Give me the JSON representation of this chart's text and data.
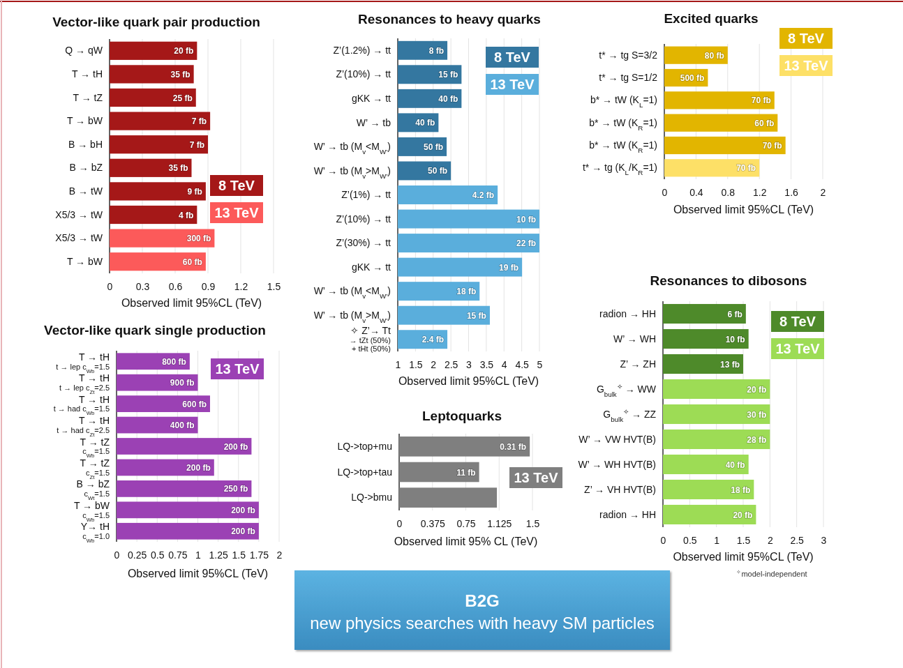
{
  "chart_data": [
    {
      "type": "bar",
      "orientation": "horizontal",
      "title": "Vector-like quark pair production",
      "xlabel": "Observed limit 95%CL (TeV)",
      "categories": [
        "Q → qW",
        "T → tH",
        "T → tZ",
        "T → bW",
        "B → bH",
        "B → bZ",
        "B → tW",
        "X5/3 → tW",
        "X5/3 → tW",
        "T → bW"
      ],
      "series": [
        {
          "name": "8 TeV",
          "color": "#a51818",
          "values": [
            0.8,
            0.77,
            0.79,
            0.92,
            0.9,
            0.75,
            0.88,
            0.8,
            null,
            null
          ]
        },
        {
          "name": "13 TeV",
          "color": "#fc5a5a",
          "values": [
            null,
            null,
            null,
            null,
            null,
            null,
            null,
            null,
            0.96,
            0.88
          ]
        }
      ],
      "xlim": [
        0,
        1.5
      ],
      "xticks": [
        0,
        0.3,
        0.6,
        0.9,
        1.2,
        1.5
      ],
      "grid": "x",
      "legend": "bottom right",
      "annotations": [
        {
          "text": "20 fb",
          "x": 0.8,
          "y": "Q → qW"
        },
        {
          "text": "35 fb",
          "x": 0.77,
          "y": "T → tH"
        },
        {
          "text": "25 fb",
          "x": 0.79,
          "y": "T → tZ"
        },
        {
          "text": "7 fb",
          "x": 0.92,
          "y": "T → bW"
        },
        {
          "text": "7 fb",
          "x": 0.9,
          "y": "B → bH"
        },
        {
          "text": "35 fb",
          "x": 0.75,
          "y": "B → bZ"
        },
        {
          "text": "9 fb",
          "x": 0.88,
          "y": "B → tW"
        },
        {
          "text": "4 fb",
          "x": 0.8,
          "y": "X5/3 → tW"
        },
        "300 fb",
        "60 fb"
      ]
    },
    {
      "type": "bar",
      "orientation": "horizontal",
      "title": "Resonances to heavy quarks",
      "xlabel": "Observed limit 95%CL (TeV)",
      "categories": [
        "Z’(1.2%) → tt",
        "Z’(10%) → tt",
        "gKK → tt",
        "W’ → tb",
        "W’ → tb  (M$_{v}$<M$_{W’}$)",
        "W’ → tb  (M$_{v}$>M$_{W’}$)",
        "Z’(1%) → tt",
        "Z’(10%) → tt",
        "Z’(30%) → tt",
        "gKK → tt",
        "W’ → tb  (M$_{v}$<M$_{W’}$)",
        "W’ → tb  (M$_{v}$>M$_{W’}$)",
        "✧ Z’→ Tt\n→ tZt (50%)\n+ tHt (50%)"
      ],
      "series": [
        {
          "name": "8 TeV",
          "color": "#3477a0",
          "values": [
            2.4,
            2.8,
            2.8,
            2.15,
            2.38,
            2.5,
            null,
            null,
            null,
            null,
            null,
            null,
            null
          ]
        },
        {
          "name": "13 TeV",
          "color": "#5aaedc",
          "values": [
            null,
            null,
            null,
            null,
            null,
            null,
            3.82,
            5.0,
            5.0,
            4.51,
            3.31,
            3.6,
            2.4
          ]
        }
      ],
      "xlim": [
        1,
        5
      ],
      "xticks": [
        1,
        1.5,
        2,
        2.5,
        3,
        3.5,
        4,
        4.5,
        5
      ],
      "grid": "x",
      "legend": "top right",
      "annotations": [
        {
          "text": "8 fb",
          "x": 2.4,
          "y": "Z’(1.2%) → tt"
        },
        {
          "text": "15 fb",
          "x": 2.8,
          "y": "Z’(10%) → tt"
        },
        {
          "text": "40 fb",
          "x": 2.8,
          "y": "gKK → tt"
        },
        {
          "text": "40 fb",
          "x": 2.15,
          "y": "W’ → tb"
        },
        {
          "text": "50 fb",
          "x": 2.38,
          "y": "W’ → tb  (M$_{v}$<M$_{W’}$)"
        },
        {
          "text": "50 fb",
          "x": 2.5,
          "y": "W’ → tb  (M$_{v}$>M$_{W’}$)"
        },
        {
          "text": "4.2 fb",
          "x": 3.82,
          "y": "Z’(1%) → tt"
        },
        "10 fb",
        {
          "text": "22 fb",
          "x": 5.0,
          "y": "Z’(30%) → tt"
        },
        "19 fb",
        "18 fb",
        "15 fb",
        {
          "text": "2.4 fb",
          "x": 2.4,
          "y": "✧ Z’→ Tt\n→ tZt (50%)\n+ tHt (50%)"
        }
      ]
    },
    {
      "type": "bar",
      "orientation": "horizontal",
      "title": "Excited quarks",
      "xlabel": "Observed limit 95%CL (TeV)",
      "categories": [
        "t* → tg S=3/2",
        "t* → tg S=1/2",
        "b* → tW (K$_{L}$=1)",
        "b* → tW  (K$_{R}$=1)",
        "b* → tW  (K$_{R}$=1)",
        "t* → tg (K$_{L}$/K$_{R}$=1)"
      ],
      "series": [
        {
          "name": "8 TeV",
          "color": "#e2b500",
          "values": [
            0.8,
            0.55,
            1.39,
            1.43,
            1.53,
            null
          ]
        },
        {
          "name": "13 TeV",
          "color": "#fde067",
          "values": [
            null,
            null,
            null,
            null,
            null,
            1.2
          ]
        }
      ],
      "xlim": [
        0,
        2
      ],
      "xticks": [
        0,
        0.4,
        0.8,
        1.2,
        1.6,
        2
      ],
      "grid": "x",
      "legend": "top right",
      "annotations": [
        {
          "text": "80 fb",
          "x": 0.8,
          "y": "t* → tg S=3/2"
        },
        {
          "text": "500 fb",
          "x": 0.55,
          "y": "t* → tg S=1/2"
        },
        {
          "text": "70 fb",
          "x": 1.39,
          "y": "b* → tW (K$_{L}$=1)"
        },
        {
          "text": "60 fb",
          "x": 1.43,
          "y": "b* → tW  (K$_{R}$=1)"
        },
        {
          "text": "70 fb",
          "x": 1.53,
          "y": "b* → tW  (K$_{R}$=1)"
        },
        {
          "text": "70 fb",
          "x": 1.2,
          "y": "t* → tg (K$_{L}$/K$_{R}$=1)"
        }
      ]
    },
    {
      "type": "bar",
      "orientation": "horizontal",
      "title": "Vector-like quark single production",
      "xlabel": "Observed limit 95%CL (TeV)",
      "categories": [
        "T → tH\nt → lep  c$_{Wb}$=1.5",
        "T → tH\nt → lep  c$_{Zt}$=2.5",
        "T → tH\nt → had  c$_{Wb}$=1.5",
        "T → tH\nt → had  c$_{Zt}$=2.5",
        "T → tZ\nc$_{Wb}$=1.5",
        "T → tZ\nc$_{Zt}$=1.5",
        "B → bZ\nc$_{Wt}$=1.5",
        "T → bW\nc$_{Wb}$=1.5",
        "Y→ tH\nc$_{Wb}$=1.0"
      ],
      "series": [
        {
          "name": "13 TeV",
          "color": "#9b41b4",
          "values": [
            0.9,
            1.0,
            1.15,
            1.0,
            1.66,
            1.2,
            1.66,
            1.75,
            1.75
          ]
        }
      ],
      "xlim": [
        0,
        2
      ],
      "xticks": [
        0,
        0.25,
        0.5,
        0.75,
        1,
        1.25,
        1.5,
        1.75,
        2
      ],
      "grid": "x",
      "legend": "top right",
      "annotations": [
        {
          "text": "800 fb",
          "x": 0.9,
          "y": "T → tH\nt → lep  c$_{Wb}$=1.5"
        },
        {
          "text": "900 fb",
          "x": 1.0,
          "y": "T → tH\nt → lep  c$_{Zt}$=2.5"
        },
        {
          "text": "600 fb",
          "x": 1.15,
          "y": "T → tH\nt → had  c$_{Wb}$=1.5"
        },
        {
          "text": "400 fb",
          "x": 1.0,
          "y": "T → tH\nt → had  c$_{Zt}$=2.5"
        },
        {
          "text": "200 fb",
          "x": 1.66,
          "y": "T → tZ\nc$_{Wb}$=1.5"
        },
        {
          "text": "200 fb",
          "x": 1.2,
          "y": "T → tZ\nc$_{Zt}$=1.5"
        },
        {
          "text": "250 fb",
          "x": 1.66,
          "y": "B → bZ\nc$_{Wt}$=1.5"
        },
        {
          "text": "200 fb",
          "x": 1.75,
          "y": "T → bW\nc$_{Wb}$=1.5"
        },
        {
          "text": "200 fb",
          "x": 1.75,
          "y": "Y→ tH\nc$_{Wb}$=1.0"
        }
      ]
    },
    {
      "type": "bar",
      "orientation": "horizontal",
      "title": "Leptoquarks",
      "xlabel": "Observed limit 95% CL (TeV)",
      "categories": [
        "LQ->top+mu",
        "LQ->top+tau",
        "LQ->bmu"
      ],
      "series": [
        {
          "name": "13 TeV",
          "color": "#7f7f7f",
          "values": [
            1.47,
            0.9,
            1.1
          ]
        }
      ],
      "xlim": [
        0,
        1.5
      ],
      "xticks": [
        0,
        0.375,
        0.75,
        1.125,
        1.5
      ],
      "grid": "x",
      "legend": "right",
      "annotations": [
        {
          "text": "0.31 fb",
          "x": 1.47,
          "y": "LQ->top+mu"
        },
        {
          "text": "11 fb",
          "x": 0.9,
          "y": "LQ->top+tau"
        }
      ]
    },
    {
      "type": "bar",
      "orientation": "horizontal",
      "title": "Resonances to dibosons",
      "xlabel": "Observed limit 95%CL (TeV)",
      "categories": [
        "radion → HH",
        "W’ → WH",
        "Z’ → ZH",
        "G$_{bulk}$$^{✧}$ → WW",
        "G$_{bulk}$$^{✧}$ → ZZ",
        "W’ → VW  HVT(B)",
        "W’ → WH HVT(B)",
        "Z’ → VH HVT(B)",
        "radion → HH"
      ],
      "series": [
        {
          "name": "8 TeV",
          "color": "#4e8a2a",
          "values": [
            1.55,
            1.6,
            1.5,
            null,
            null,
            null,
            null,
            null,
            null
          ]
        },
        {
          "name": "13 TeV",
          "color": "#9ddc55",
          "values": [
            null,
            null,
            null,
            2.0,
            2.0,
            2.0,
            1.6,
            1.7,
            1.74
          ]
        }
      ],
      "xlim": [
        0,
        3
      ],
      "xticks": [
        0,
        0.5,
        1,
        1.5,
        2,
        2.5,
        3
      ],
      "grid": "x",
      "legend": "top right",
      "annotations": [
        {
          "text": "6 fb",
          "x": 1.55,
          "y": "radion → HH"
        },
        {
          "text": "10 fb",
          "x": 1.6,
          "y": "W’ → WH"
        },
        {
          "text": "13 fb",
          "x": 1.5,
          "y": "Z’ → ZH"
        },
        {
          "text": "20 fb",
          "x": 2.0,
          "y": "G$_{bulk}$$^{✧}$ → WW"
        },
        {
          "text": "30 fb",
          "x": 2.0,
          "y": "G$_{bulk}$$^{✧}$ → ZZ"
        },
        {
          "text": "28 fb",
          "x": 2.0,
          "y": "W’ → VW  HVT(B)"
        },
        {
          "text": "40 fb",
          "x": 1.6,
          "y": "W’ → WH HVT(B)"
        },
        {
          "text": "18 fb",
          "x": 1.7,
          "y": "Z’ → VH HVT(B)"
        },
        "20 fb",
        "$^{✧}$model-independent"
      ]
    },
    {
      "type": "other",
      "title": "B2G",
      "subtitle": "new physics searches with heavy SM particles"
    }
  ]
}
